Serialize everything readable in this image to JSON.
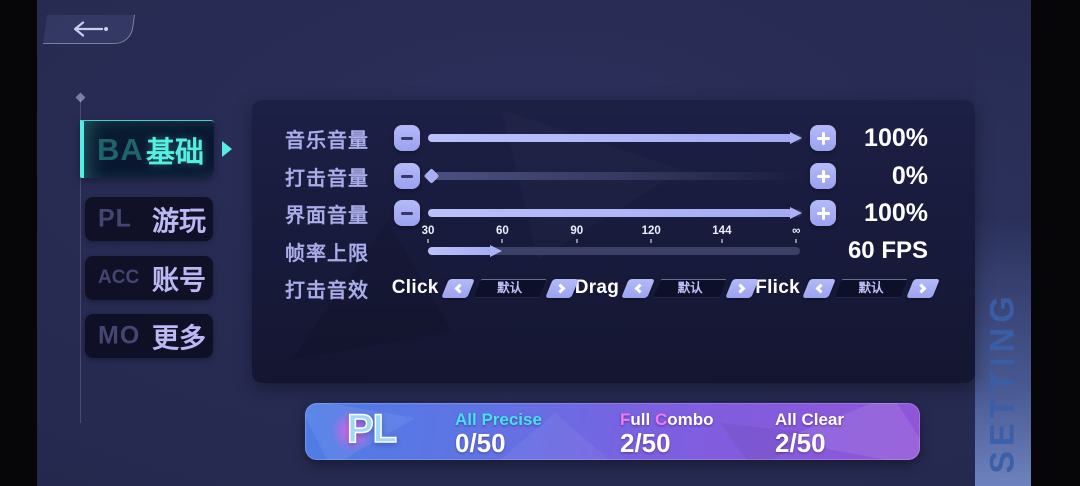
{
  "colors": {
    "background": "#262a50",
    "panel_bg": "#181b3c",
    "accent_teal": "#55eee0",
    "slider_purple": "#a9aff4",
    "label_lavender": "#a9ace8",
    "banner_blue": "#4f7de6",
    "banner_purple": "#9055d8",
    "precise_cyan": "#45e2f0",
    "combo_pink": "#f479ef"
  },
  "sidebar": {
    "tabs": [
      {
        "label": "基础",
        "ghost": "BA",
        "state": "active"
      },
      {
        "label": "游玩",
        "ghost": "PL",
        "state": "inactive"
      },
      {
        "label": "账号",
        "ghost": "ACC",
        "state": "inactive"
      },
      {
        "label": "更多",
        "ghost": "MO",
        "state": "inactive"
      }
    ]
  },
  "settings": {
    "music_volume": {
      "label": "音乐音量",
      "value": "100%",
      "percent": 100
    },
    "hit_volume": {
      "label": "打击音量",
      "value": "0%",
      "percent": 0
    },
    "ui_volume": {
      "label": "界面音量",
      "value": "100%",
      "percent": 100
    },
    "fps_limit": {
      "label": "帧率上限",
      "value": "60 FPS",
      "fill_percent": 20,
      "ticks": [
        "30",
        "60",
        "90",
        "120",
        "144",
        "∞"
      ]
    },
    "hit_sound": {
      "label": "打击音效",
      "selectors": [
        {
          "name": "Click",
          "value": "默认"
        },
        {
          "name": "Drag",
          "value": "默认"
        },
        {
          "name": "Flick",
          "value": "默认"
        }
      ]
    }
  },
  "side_label": "SETTING",
  "banner": {
    "logo": "PL",
    "stats": [
      {
        "label": "All Precise",
        "value": "0/50"
      },
      {
        "parts": [
          "F",
          "ull ",
          "C",
          "ombo"
        ],
        "value": "2/50"
      },
      {
        "label": "All Clear",
        "value": "2/50"
      }
    ]
  }
}
